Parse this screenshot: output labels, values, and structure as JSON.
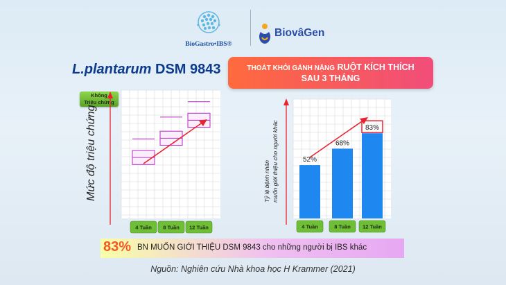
{
  "brand": {
    "biogastro": "BioGastro•IBS®",
    "biovagen": "BiovâGen"
  },
  "product": {
    "strain": "L.plantarum",
    "code": "DSM 9843"
  },
  "headline": {
    "line1_small": "THOÁT KHỎI GÁNH NẶNG",
    "line1_big": "RUỘT KÍCH THÍCH",
    "line2": "SAU 3 THÁNG"
  },
  "chart_data": [
    {
      "type": "box",
      "ylabel": "Mức độ triệu chứng",
      "top_badge": "Không Triệu chứng",
      "top_badge_line1": "Không",
      "top_badge_line2": "Triệu chứng",
      "categories": [
        "4 Tuần",
        "8 Tuần",
        "12 Tuần"
      ],
      "series": [
        {
          "low": 0.42,
          "high": 0.53,
          "median": 0.475,
          "whisker": 0.62
        },
        {
          "low": 0.57,
          "high": 0.68,
          "median": 0.625,
          "whisker": 0.79
        },
        {
          "low": 0.71,
          "high": 0.82,
          "median": 0.765,
          "whisker": 0.91
        }
      ],
      "trend": "increasing",
      "grid": true
    },
    {
      "type": "bar",
      "ylabel": "Tỷ lệ bệnh nhân muốn giới thiệu cho người khác",
      "ylabel_line1": "Tỷ lệ bệnh nhân",
      "ylabel_line2": "muốn giới thiệu cho người khác",
      "categories": [
        "4 Tuần",
        "8 Tuần",
        "12 Tuần"
      ],
      "values": [
        52,
        68,
        83
      ],
      "labels": [
        "52%",
        "68%",
        "83%"
      ],
      "ylim": [
        0,
        100
      ],
      "highlight_index": 2,
      "bar_color": "#1e88f0",
      "grid": true
    }
  ],
  "summary": {
    "percent": "83%",
    "text": "BN MUỐN GIỚI THIỆU DSM 9843 cho những người bị IBS khác"
  },
  "source": "Nguồn: Nghiên cứu Nhà khoa học H Krammer (2021)",
  "colors": {
    "title_blue": "#0d3b8c",
    "banner_start": "#ff6a3d",
    "banner_end": "#f14d7a",
    "bar_blue": "#1e88f0",
    "badge_green": "#6fbf36",
    "arrow_red": "#e8232e",
    "box_pink": "#b83cc4"
  }
}
